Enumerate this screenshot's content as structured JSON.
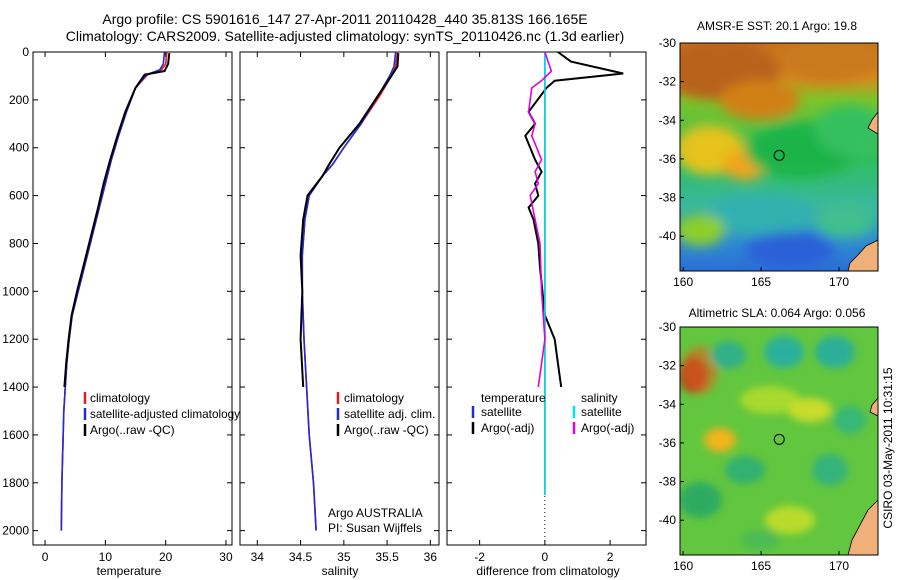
{
  "header": {
    "line1": "Argo profile: CS 5901616_147 27-Apr-2011 20110428_440 35.813S 166.165E",
    "line2": "Climatology: CARS2009. Satellite-adjusted climatology: synTS_20110426.nc (1.3d earlier)"
  },
  "side_label": "CSIRO 03-May-2011 10:31:15",
  "colors": {
    "red": "#e41a1c",
    "blue": "#1f2bd6",
    "black": "#000000",
    "cyan": "#00e5ee",
    "magenta": "#e000e0"
  },
  "chart_data": [
    {
      "type": "line",
      "id": "temperature",
      "xlabel": "temperature",
      "xlim": [
        -2,
        31
      ],
      "ylim": [
        0,
        2060
      ],
      "xticks": [
        0,
        10,
        20,
        30
      ],
      "yticks": [
        0,
        200,
        400,
        600,
        800,
        1000,
        1200,
        1400,
        1600,
        1800,
        2000
      ],
      "series": [
        {
          "name": "climatology",
          "color": "#e41a1c",
          "x": [
            20.2,
            20.0,
            19.3,
            17.0,
            15.0,
            13.5,
            12.2,
            11.0,
            10.0,
            9.0,
            7.5,
            6.5,
            5.5,
            4.5,
            4.0,
            3.6,
            3.1,
            2.8,
            2.7
          ],
          "y": [
            0,
            50,
            75,
            95,
            150,
            250,
            350,
            450,
            550,
            650,
            800,
            900,
            1000,
            1100,
            1200,
            1300,
            1500,
            1800,
            2000
          ]
        },
        {
          "name": "satellite-adjusted climatology",
          "color": "#1f2bd6",
          "x": [
            19.8,
            19.6,
            19.0,
            16.8,
            15.0,
            13.5,
            12.2,
            11.0,
            10.0,
            9.0,
            7.5,
            6.5,
            5.5,
            4.5,
            4.0,
            3.6,
            3.1,
            2.8,
            2.7
          ],
          "y": [
            0,
            50,
            75,
            95,
            150,
            250,
            350,
            450,
            550,
            650,
            800,
            900,
            1000,
            1100,
            1200,
            1300,
            1500,
            1800,
            2000
          ]
        },
        {
          "name": "Argo(..raw -QC)",
          "color": "#000000",
          "x": [
            20.6,
            20.4,
            19.8,
            16.5,
            15.0,
            13.3,
            12.0,
            10.8,
            9.7,
            8.8,
            7.3,
            6.3,
            5.3,
            4.4,
            3.9,
            3.5,
            3.2
          ],
          "y": [
            5,
            50,
            80,
            95,
            150,
            250,
            350,
            450,
            550,
            650,
            800,
            900,
            1000,
            1100,
            1200,
            1300,
            1400
          ]
        }
      ],
      "legend": {
        "position": "lower-center",
        "entries": [
          "climatology",
          "satellite-adjusted climatology",
          "Argo(..raw -QC)"
        ]
      }
    },
    {
      "type": "line",
      "id": "salinity",
      "xlabel": "salinity",
      "xlim": [
        33.8,
        36.1
      ],
      "ylim": [
        0,
        2060
      ],
      "xticks": [
        34,
        34.5,
        35,
        35.5,
        36
      ],
      "series": [
        {
          "name": "climatology",
          "color": "#e41a1c",
          "x": [
            35.62,
            35.6,
            35.55,
            35.42,
            35.2,
            35.0,
            34.87,
            34.75,
            34.6,
            34.55,
            34.52,
            34.52,
            34.54,
            34.57,
            34.6,
            34.65,
            34.68
          ],
          "y": [
            0,
            60,
            100,
            180,
            300,
            400,
            470,
            520,
            600,
            700,
            850,
            1000,
            1200,
            1400,
            1600,
            1800,
            2000
          ]
        },
        {
          "name": "satellite adj. clim.",
          "color": "#1f2bd6",
          "x": [
            35.6,
            35.58,
            35.53,
            35.4,
            35.2,
            35.0,
            34.87,
            34.75,
            34.6,
            34.55,
            34.52,
            34.52,
            34.54,
            34.57,
            34.6,
            34.65,
            34.68
          ],
          "y": [
            0,
            60,
            100,
            180,
            300,
            400,
            470,
            520,
            600,
            700,
            850,
            1000,
            1200,
            1400,
            1600,
            1800,
            2000
          ]
        },
        {
          "name": "Argo(..raw -QC)",
          "color": "#000000",
          "x": [
            35.63,
            35.62,
            35.55,
            35.4,
            35.18,
            34.95,
            34.83,
            34.75,
            34.58,
            34.53,
            34.5,
            34.52,
            34.5,
            34.53
          ],
          "y": [
            5,
            60,
            100,
            180,
            300,
            400,
            470,
            520,
            600,
            700,
            850,
            1000,
            1200,
            1400
          ]
        }
      ],
      "legend": {
        "position": "lower-center",
        "entries": [
          "climatology",
          "satellite adj. clim.",
          "Argo(..raw -QC)"
        ]
      },
      "annotation": [
        "Argo AUSTRALIA",
        "PI: Susan Wijffels"
      ]
    },
    {
      "type": "line",
      "id": "difference",
      "xlabel": "difference from climatology",
      "xlim": [
        -3,
        3.1
      ],
      "ylim": [
        0,
        2060
      ],
      "xticks": [
        -2,
        0,
        2
      ],
      "series": [
        {
          "name": "temperature satellite",
          "color": "#1f2bd6",
          "x": [
            0.0,
            0.0,
            0.0
          ],
          "y": [
            0,
            1000,
            1850
          ]
        },
        {
          "name": "temperature Argo(-adj)",
          "color": "#000000",
          "x": [
            0.4,
            0.8,
            2.4,
            0.3,
            0.05,
            -0.5,
            -0.3,
            -0.6,
            -0.3,
            -0.1,
            -0.3,
            -0.2,
            -0.5,
            -0.35,
            -0.2,
            -0.15,
            0.0,
            0.3,
            0.4,
            0.5
          ],
          "y": [
            0,
            40,
            90,
            120,
            150,
            250,
            300,
            350,
            450,
            500,
            550,
            600,
            650,
            700,
            800,
            900,
            1100,
            1200,
            1300,
            1400
          ]
        },
        {
          "name": "salinity satellite",
          "color": "#00e5ee",
          "x": [
            0.0,
            0.0,
            0.0
          ],
          "y": [
            0,
            1000,
            1850
          ]
        },
        {
          "name": "salinity Argo(-adj)",
          "color": "#e000e0",
          "x": [
            0.0,
            0.1,
            0.2,
            -0.1,
            -0.4,
            -0.5,
            -0.3,
            -0.4,
            -0.1,
            -0.3,
            -0.2,
            -0.45,
            -0.3,
            -0.15,
            -0.1,
            0.0,
            -0.1,
            -0.2
          ],
          "y": [
            0,
            40,
            80,
            120,
            150,
            250,
            300,
            350,
            450,
            500,
            550,
            600,
            700,
            800,
            1000,
            1200,
            1300,
            1400
          ]
        }
      ],
      "legend": {
        "position": "lower-center",
        "temperature_header": "temperature",
        "salinity_header": "salinity",
        "entries_left": [
          "satellite",
          "Argo(-adj)"
        ],
        "entries_right": [
          "satellite",
          "Argo(-adj)"
        ]
      }
    }
  ],
  "maps": {
    "sst": {
      "title": "AMSR-E SST: 20.1 Argo: 19.8",
      "xticks": [
        160,
        165,
        170
      ],
      "yticks": [
        -30,
        -32,
        -34,
        -36,
        -38,
        -40
      ],
      "lon_range": [
        159.8,
        172.5
      ],
      "lat_range": [
        -30,
        -41.8
      ],
      "float_position": [
        166.165,
        -35.813
      ]
    },
    "sla": {
      "title": "Altimetric SLA: 0.064 Argo: 0.056",
      "xticks": [
        160,
        165,
        170
      ],
      "yticks": [
        -30,
        -32,
        -34,
        -36,
        -38,
        -40
      ],
      "lon_range": [
        159.8,
        172.5
      ],
      "lat_range": [
        -30,
        -41.8
      ],
      "float_position": [
        166.165,
        -35.813
      ]
    }
  }
}
